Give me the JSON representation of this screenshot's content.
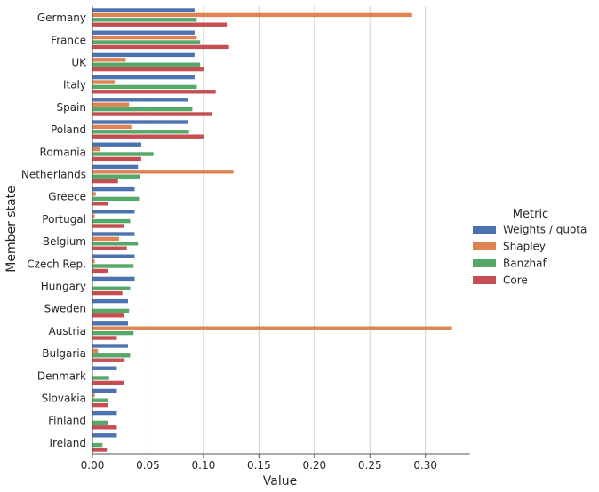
{
  "chart_data": {
    "type": "bar",
    "orientation": "horizontal",
    "title": "",
    "xlabel": "Value",
    "ylabel": "Member state",
    "xlim": [
      0,
      0.34
    ],
    "xticks": [
      "0.00",
      "0.05",
      "0.10",
      "0.15",
      "0.20",
      "0.25",
      "0.30"
    ],
    "grid": "vertical",
    "legend_title": "Metric",
    "legend_position": "right",
    "categories": [
      "Germany",
      "France",
      "UK",
      "Italy",
      "Spain",
      "Poland",
      "Romania",
      "Netherlands",
      "Greece",
      "Portugal",
      "Belgium",
      "Czech Rep.",
      "Hungary",
      "Sweden",
      "Austria",
      "Bulgaria",
      "Denmark",
      "Slovakia",
      "Finland",
      "Ireland"
    ],
    "series": [
      {
        "name": "Weights / quota",
        "color": "#4c72b0",
        "values": [
          0.092,
          0.092,
          0.092,
          0.092,
          0.086,
          0.086,
          0.044,
          0.041,
          0.038,
          0.038,
          0.038,
          0.038,
          0.038,
          0.032,
          0.032,
          0.032,
          0.022,
          0.022,
          0.022,
          0.022
        ]
      },
      {
        "name": "Shapley",
        "color": "#dd8452",
        "values": [
          0.288,
          0.094,
          0.03,
          0.02,
          0.033,
          0.035,
          0.007,
          0.127,
          0.003,
          0.002,
          0.024,
          0.002,
          0.0,
          0.0,
          0.324,
          0.005,
          0.0,
          0.002,
          0.0,
          0.0
        ]
      },
      {
        "name": "Banzhaf",
        "color": "#55a868",
        "values": [
          0.094,
          0.097,
          0.097,
          0.094,
          0.09,
          0.087,
          0.055,
          0.043,
          0.042,
          0.034,
          0.041,
          0.037,
          0.034,
          0.033,
          0.037,
          0.034,
          0.015,
          0.014,
          0.014,
          0.009
        ]
      },
      {
        "name": "Core",
        "color": "#c44e52",
        "values": [
          0.121,
          0.123,
          0.1,
          0.111,
          0.108,
          0.1,
          0.044,
          0.023,
          0.014,
          0.028,
          0.031,
          0.014,
          0.027,
          0.028,
          0.022,
          0.029,
          0.028,
          0.014,
          0.022,
          0.013
        ]
      }
    ]
  }
}
